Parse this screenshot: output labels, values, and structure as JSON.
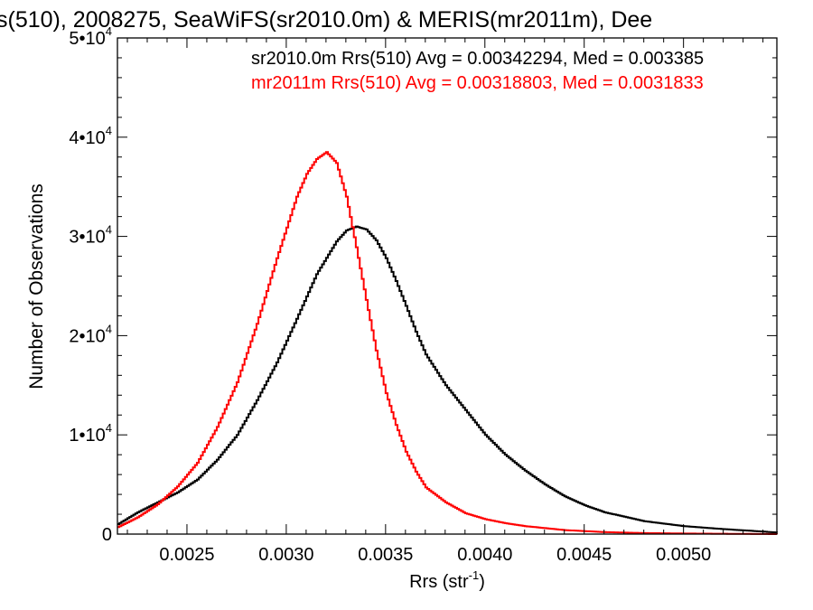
{
  "chart_data": {
    "type": "line",
    "title": "s(510), 2008275, SeaWiFS(sr2010.0m) & MERIS(mr2011m), Dee",
    "xlabel": "Rrs (str",
    "xlabel_sup": "-1",
    "xlabel_close": ")",
    "ylabel": "Number of Observations",
    "xlim": [
      0.00215,
      0.00547
    ],
    "ylim": [
      0,
      50000
    ],
    "grid": false,
    "x_ticks": [
      {
        "value": 0.0025,
        "label": "0.0025"
      },
      {
        "value": 0.003,
        "label": "0.0030"
      },
      {
        "value": 0.0035,
        "label": "0.0035"
      },
      {
        "value": 0.004,
        "label": "0.0040"
      },
      {
        "value": 0.0045,
        "label": "0.0045"
      },
      {
        "value": 0.005,
        "label": "0.0050"
      }
    ],
    "y_ticks": [
      {
        "value": 0,
        "base": "0",
        "exp": ""
      },
      {
        "value": 10000,
        "base": "1•10",
        "exp": "4"
      },
      {
        "value": 20000,
        "base": "2•10",
        "exp": "4"
      },
      {
        "value": 30000,
        "base": "3•10",
        "exp": "4"
      },
      {
        "value": 40000,
        "base": "4•10",
        "exp": "4"
      },
      {
        "value": 50000,
        "base": "5•10",
        "exp": "4"
      }
    ],
    "annotations": [
      {
        "text": "sr2010.0m Rrs(510) Avg = 0.00342294, Med = 0.003385",
        "color": "#000000"
      },
      {
        "text": "mr2011m Rrs(510) Avg = 0.00318803, Med = 0.0031833",
        "color": "#ff0000"
      }
    ],
    "series": [
      {
        "color": "#000000",
        "x": [
          0.00215,
          0.00225,
          0.00235,
          0.00245,
          0.00255,
          0.00265,
          0.00275,
          0.00285,
          0.00295,
          0.00305,
          0.00315,
          0.00325,
          0.0033,
          0.00335,
          0.0034,
          0.00345,
          0.0035,
          0.00355,
          0.0036,
          0.00365,
          0.0037,
          0.0038,
          0.0039,
          0.004,
          0.0041,
          0.0042,
          0.0043,
          0.0044,
          0.0045,
          0.0046,
          0.0048,
          0.005,
          0.0052,
          0.0054,
          0.00547
        ],
        "y": [
          1000,
          2200,
          3200,
          4200,
          5500,
          7500,
          10000,
          13500,
          17300,
          21700,
          26200,
          29500,
          30600,
          31000,
          30700,
          29600,
          27800,
          25500,
          23000,
          20400,
          18100,
          15000,
          12500,
          10000,
          8000,
          6400,
          5000,
          3800,
          2900,
          2200,
          1300,
          800,
          500,
          250,
          150
        ]
      },
      {
        "color": "#ff0000",
        "x": [
          0.00215,
          0.00225,
          0.00235,
          0.00245,
          0.00255,
          0.00265,
          0.00275,
          0.00285,
          0.00295,
          0.00305,
          0.0031,
          0.00315,
          0.0032,
          0.00325,
          0.0033,
          0.00335,
          0.0034,
          0.00345,
          0.0035,
          0.00355,
          0.0036,
          0.00365,
          0.0037,
          0.0038,
          0.0039,
          0.004,
          0.0041,
          0.0042,
          0.0043,
          0.0044,
          0.0045,
          0.0046,
          0.0048,
          0.005,
          0.0052,
          0.0054,
          0.00547
        ],
        "y": [
          700,
          1700,
          3000,
          4800,
          7200,
          10800,
          15300,
          21200,
          27800,
          34000,
          36300,
          37800,
          38500,
          37400,
          34000,
          28900,
          23600,
          18500,
          14200,
          11000,
          8300,
          6300,
          4700,
          3200,
          2100,
          1500,
          1100,
          800,
          600,
          400,
          300,
          200,
          100,
          60,
          30,
          10,
          0
        ]
      }
    ]
  }
}
